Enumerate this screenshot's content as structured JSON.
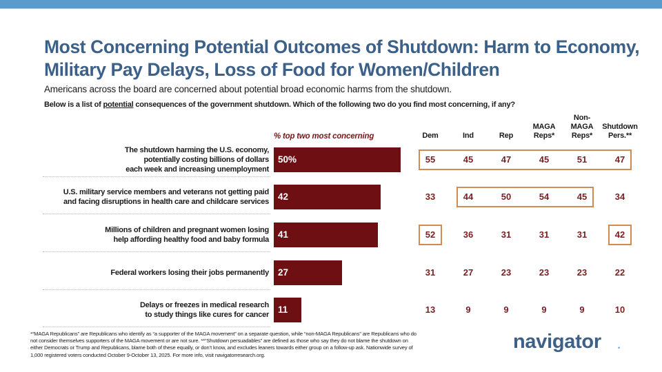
{
  "header": {
    "title": "Most Concerning Potential Outcomes of Shutdown: Harm to Economy, Military Pay Delays, Loss of Food for Women/Children",
    "subtitle": "Americans across the board are concerned about potential broad economic harms from the shutdown.",
    "question_pre": "Below is a list of ",
    "question_underlined": "potential",
    "question_post": " consequences of the government shutdown. Which of the following two do you find most concerning, if any?"
  },
  "colors": {
    "title": "#3d6089",
    "bar": "#6e1013",
    "value_text": "#7a1f22",
    "highlight_box": "#d08a53",
    "top_bar": "#5b9bcb"
  },
  "chart_data": {
    "type": "bar",
    "orientation": "horizontal",
    "title": "% top two most concerning",
    "categories": [
      "The shutdown harming the U.S. economy, potentially costing billions of dollars each week and increasing unemployment",
      "U.S. military service members and veterans not getting paid and facing disruptions in health care and childcare services",
      "Millions of children and pregnant women losing help affording healthy food and baby formula",
      "Federal workers losing their jobs permanently",
      "Delays or freezes in medical research to study things like cures for cancer"
    ],
    "category_lines": [
      [
        "The shutdown harming the U.S. economy,",
        "potentially costing billions of dollars",
        "each week and increasing unemployment"
      ],
      [
        "U.S. military service members and veterans not getting paid",
        "and facing disruptions in health care and childcare services"
      ],
      [
        "Millions of children and pregnant women losing",
        "help affording healthy food and baby formula"
      ],
      [
        "Federal workers losing their jobs permanently"
      ],
      [
        "Delays or freezes in medical research",
        "to study things like cures for cancer"
      ]
    ],
    "values": [
      50,
      42,
      41,
      27,
      11
    ],
    "value_labels": [
      "50%",
      "42",
      "41",
      "27",
      "11"
    ],
    "xlim": [
      0,
      100
    ],
    "grid": false,
    "table": {
      "columns": [
        "Dem",
        "Ind",
        "Rep",
        "MAGA Reps*",
        "Non-MAGA Reps*",
        "Shutdown Pers.**"
      ],
      "column_lines": [
        [
          "Dem"
        ],
        [
          "Ind"
        ],
        [
          "Rep"
        ],
        [
          "MAGA",
          "Reps*"
        ],
        [
          "Non-",
          "MAGA",
          "Reps*"
        ],
        [
          "Shutdown",
          "Pers.**"
        ]
      ],
      "rows": [
        [
          55,
          45,
          47,
          45,
          51,
          47
        ],
        [
          33,
          44,
          50,
          54,
          45,
          34
        ],
        [
          52,
          36,
          31,
          31,
          31,
          42
        ],
        [
          31,
          27,
          23,
          23,
          23,
          22
        ],
        [
          13,
          9,
          9,
          9,
          9,
          10
        ]
      ],
      "highlights": [
        {
          "row": 0,
          "col_start": 0,
          "col_end": 5
        },
        {
          "row": 1,
          "col_start": 1,
          "col_end": 4
        },
        {
          "row": 2,
          "col_start": 0,
          "col_end": 0
        },
        {
          "row": 2,
          "col_start": 5,
          "col_end": 5
        }
      ]
    }
  },
  "footnote": "*“MAGA Republicans” are Republicans who identify as “a supporter of the MAGA movement” on a separate question, while “non-MAGA Republicans” are Republicans who do not consider themselves supporters of the MAGA movement or are not sure. **“Shutdown persuadables” are defined as those who say they do not blame the shutdown on either Democrats or Trump and Republicans, blame both of these equally, or don’t know, and excludes leaners towards either group on a follow-up ask. Nationwide survey of 1,000 registered voters conducted October 9-October 13, 2025. For more info, visit navigatorresearch.org.",
  "logo": {
    "text": "navigator",
    "dot": "•"
  }
}
